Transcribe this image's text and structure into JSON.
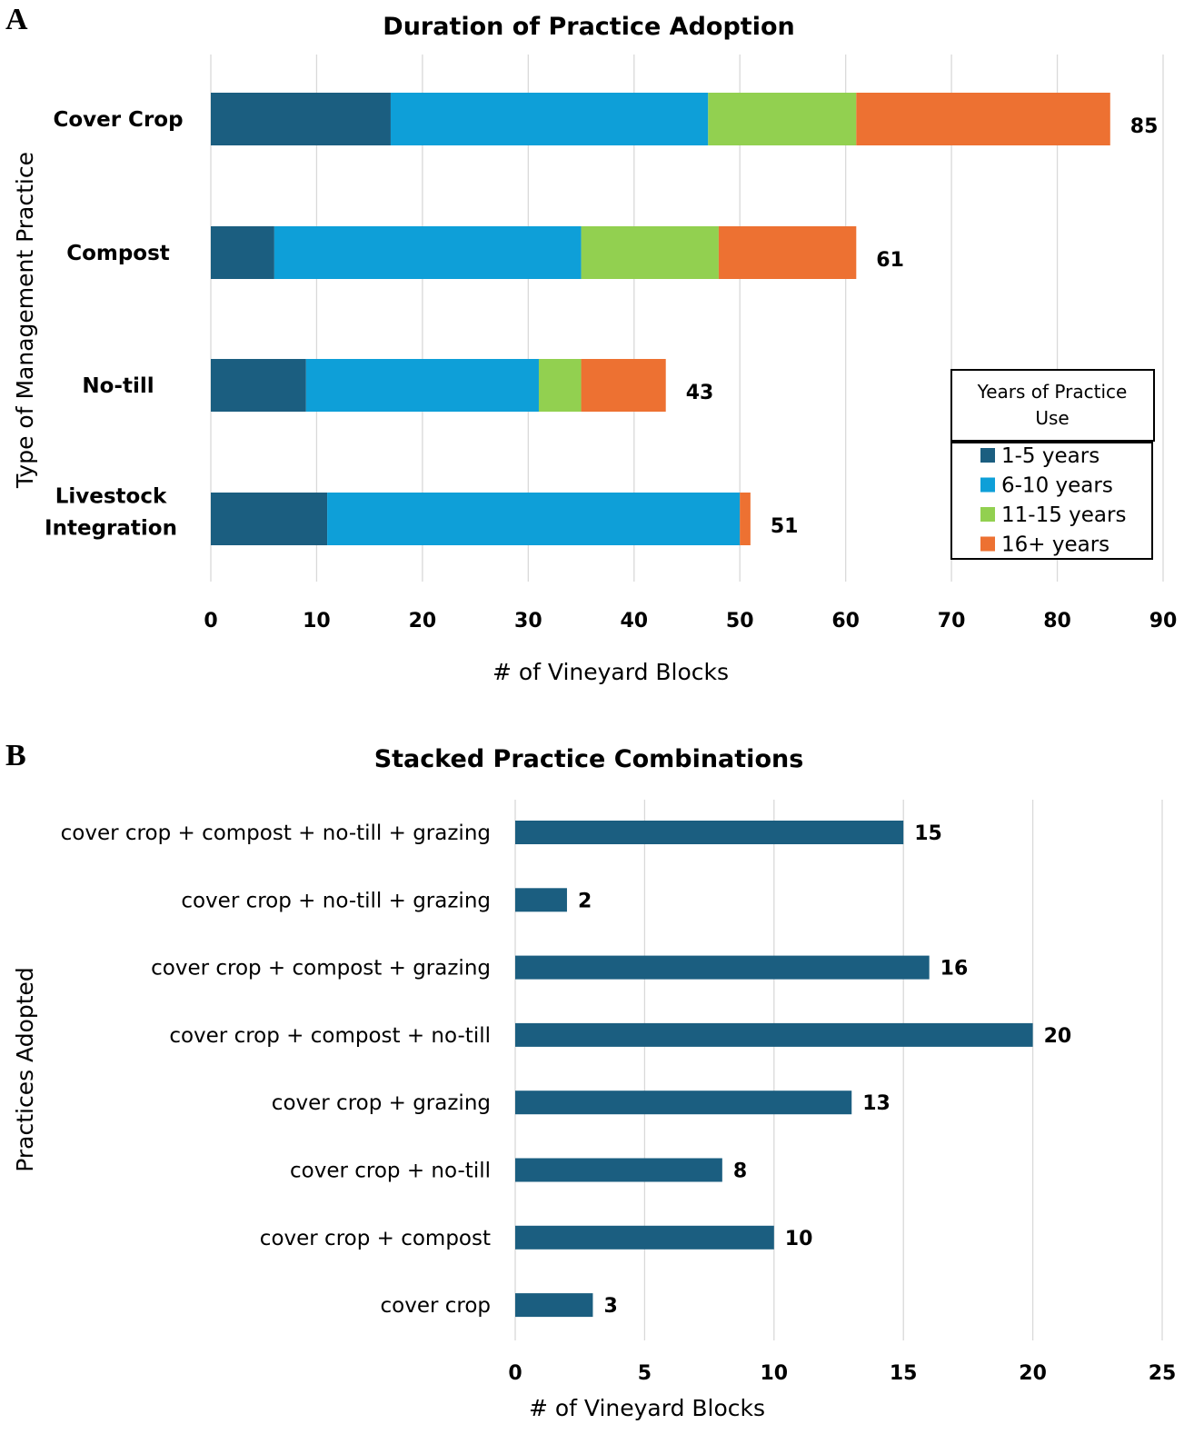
{
  "chart_data": [
    {
      "panel": "A",
      "type": "bar",
      "orientation": "horizontal",
      "stacked": true,
      "title": "Duration of Practice Adoption",
      "xlabel": "# of Vineyard Blocks",
      "ylabel": "Type of Management Practice",
      "xlim": [
        0,
        90
      ],
      "xticks": [
        0,
        10,
        20,
        30,
        40,
        50,
        60,
        70,
        80,
        90
      ],
      "grid": "vertical",
      "categories": [
        "Cover Crop",
        "Compost",
        "No-till",
        "Livestock Integration"
      ],
      "category_lines": [
        [
          "Cover Crop"
        ],
        [
          "Compost"
        ],
        [
          "No-till"
        ],
        [
          "Livestock",
          "Integration"
        ]
      ],
      "series": [
        {
          "name": "1-5 years",
          "color": "#1b5e80",
          "values": [
            17,
            6,
            9,
            11
          ]
        },
        {
          "name": "6-10 years",
          "color": "#0e9fd8",
          "values": [
            30,
            29,
            22,
            39
          ]
        },
        {
          "name": "11-15 years",
          "color": "#92d050",
          "values": [
            14,
            13,
            4,
            0
          ]
        },
        {
          "name": "16+ years",
          "color": "#ed7132",
          "values": [
            24,
            13,
            8,
            1
          ]
        }
      ],
      "totals": [
        85,
        61,
        43,
        51
      ],
      "legend": {
        "title_lines": [
          "Years of Practice",
          "Use"
        ],
        "placement": "right"
      }
    },
    {
      "panel": "B",
      "type": "bar",
      "orientation": "horizontal",
      "title": "Stacked Practice Combinations",
      "xlabel": "# of Vineyard Blocks",
      "ylabel": "Practices Adopted",
      "xlim": [
        0,
        25
      ],
      "xticks": [
        0,
        5,
        10,
        15,
        20,
        25
      ],
      "grid": "vertical",
      "color": "#1b5e80",
      "categories": [
        "cover crop + compost + no-till + grazing",
        "cover crop + no-till + grazing",
        "cover crop + compost + grazing",
        "cover crop + compost + no-till",
        "cover crop + grazing",
        "cover crop + no-till",
        "cover crop + compost",
        "cover crop"
      ],
      "values": [
        15,
        2,
        16,
        20,
        13,
        8,
        10,
        3
      ]
    }
  ]
}
